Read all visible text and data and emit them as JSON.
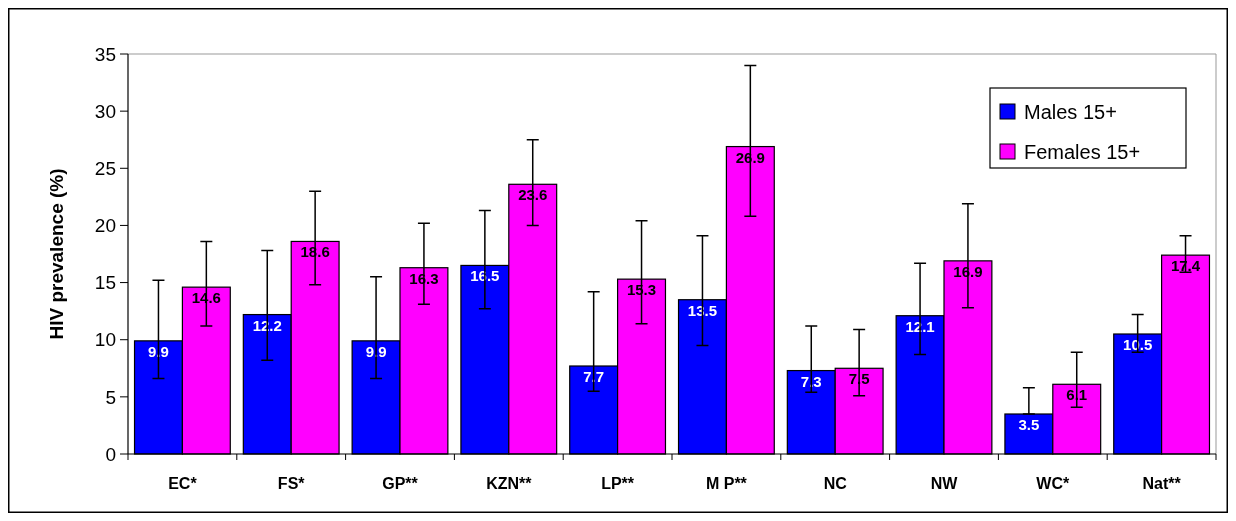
{
  "chart_data": {
    "type": "bar",
    "ylabel": "HIV prevalence (%)",
    "categories": [
      "EC*",
      "FS*",
      "GP**",
      "KZN**",
      "LP**",
      "M P**",
      "NC",
      "NW",
      "WC*",
      "Nat**"
    ],
    "series": [
      {
        "name": "Males 15+",
        "color": "#0000ff",
        "values": [
          9.9,
          12.2,
          9.9,
          16.5,
          7.7,
          13.5,
          7.3,
          12.1,
          3.5,
          10.5
        ],
        "errors": [
          [
            6.6,
            15.2
          ],
          [
            8.2,
            17.8
          ],
          [
            6.6,
            15.5
          ],
          [
            12.7,
            21.3
          ],
          [
            5.5,
            14.2
          ],
          [
            9.5,
            19.1
          ],
          [
            5.4,
            11.2
          ],
          [
            8.7,
            16.7
          ],
          [
            3.5,
            5.8
          ],
          [
            8.9,
            12.2
          ]
        ]
      },
      {
        "name": "Females 15+",
        "color": "#ff00ff",
        "values": [
          14.6,
          18.6,
          16.3,
          23.6,
          15.3,
          26.9,
          7.5,
          16.9,
          6.1,
          17.4
        ],
        "errors": [
          [
            11.2,
            18.6
          ],
          [
            14.8,
            23.0
          ],
          [
            13.1,
            20.2
          ],
          [
            20.0,
            27.5
          ],
          [
            11.4,
            20.4
          ],
          [
            20.8,
            34.0
          ],
          [
            5.1,
            10.9
          ],
          [
            12.8,
            21.9
          ],
          [
            4.1,
            8.9
          ],
          [
            15.9,
            19.1
          ]
        ]
      }
    ],
    "ylim": [
      0,
      35
    ],
    "yticks": [
      0,
      5,
      10,
      15,
      20,
      25,
      30,
      35
    ],
    "grid": false,
    "legend": "top right",
    "data_labels": true
  }
}
